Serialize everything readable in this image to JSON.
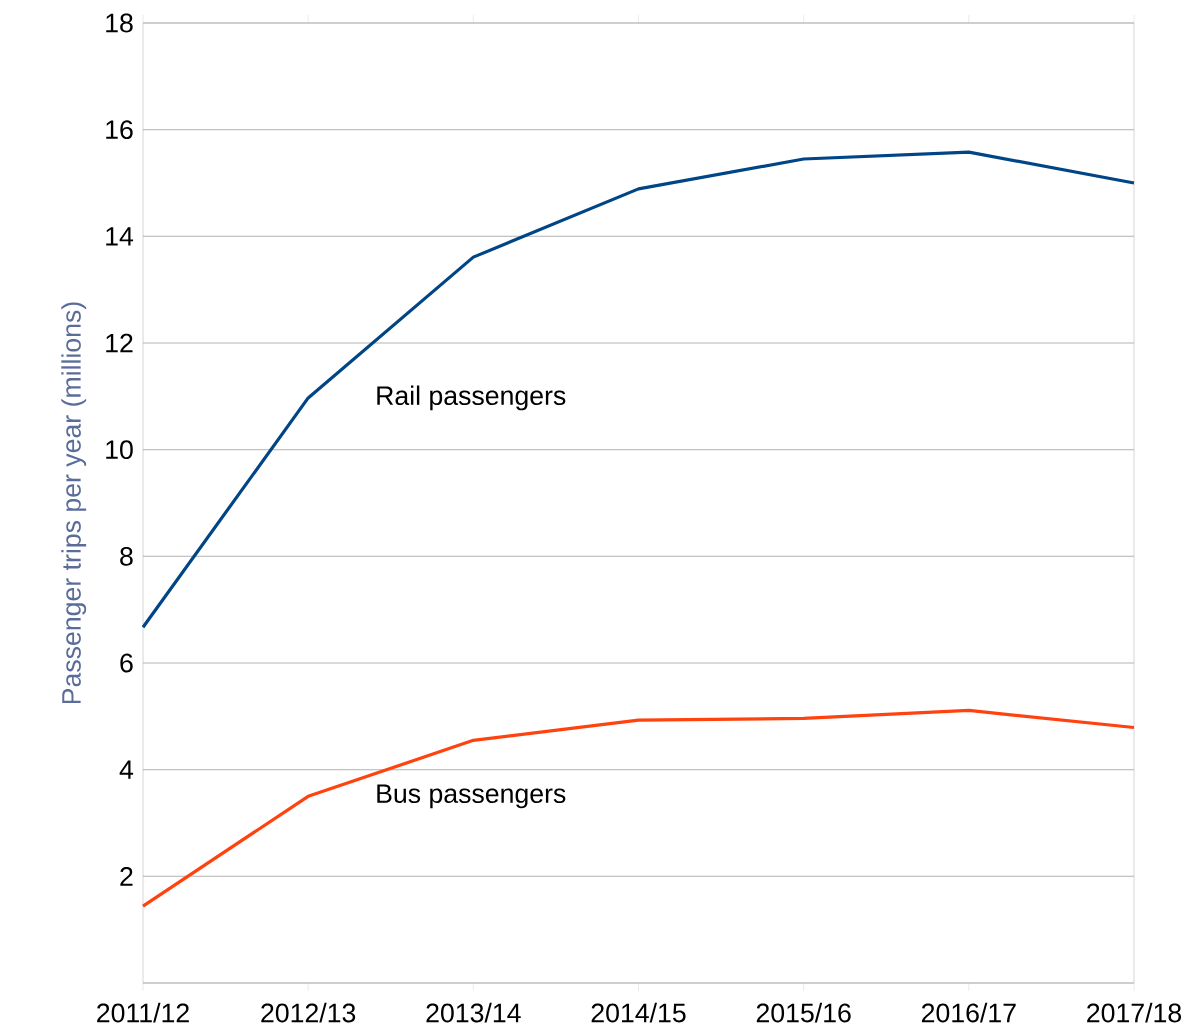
{
  "chart_data": {
    "type": "line",
    "ylabel": "Passenger trips per year (millions)",
    "categories": [
      "2011/12",
      "2012/13",
      "2013/14",
      "2014/15",
      "2015/16",
      "2016/17",
      "2017/18"
    ],
    "series": [
      {
        "name": "Rail passengers",
        "color": "#004586",
        "values": [
          6.67,
          10.97,
          13.61,
          14.89,
          15.45,
          15.58,
          15.0
        ]
      },
      {
        "name": "Bus passengers",
        "color": "#ff420e",
        "values": [
          1.44,
          3.5,
          4.55,
          4.93,
          4.96,
          5.11,
          4.79
        ]
      }
    ],
    "ylim": [
      0,
      18
    ],
    "yticks": [
      {
        "value": 0,
        "label": null
      },
      2,
      4,
      6,
      8,
      10,
      12,
      14,
      16,
      18
    ],
    "grid": "y",
    "legend": false,
    "marker": "none",
    "line_style": "solid"
  }
}
